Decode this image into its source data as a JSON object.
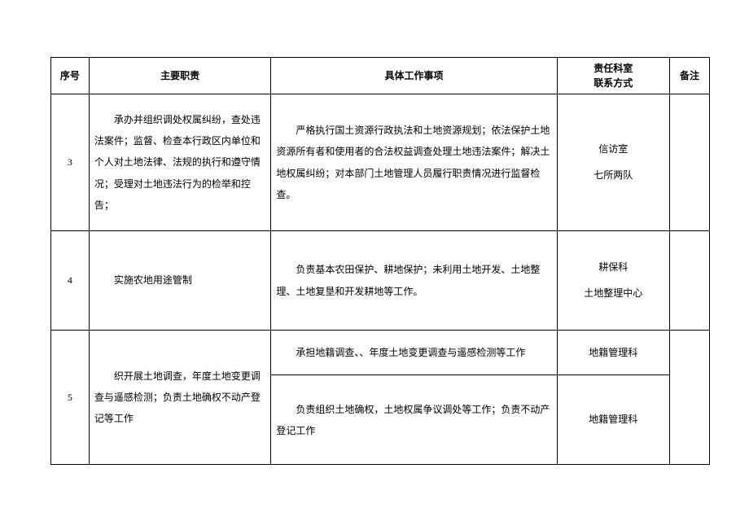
{
  "header": {
    "num": "序号",
    "duty": "主要职责",
    "work": "具体工作事项",
    "dept": "责任科室\n联系方式",
    "note": "备注"
  },
  "rows": [
    {
      "num": "3",
      "duty": "承办并组织调处权属纠纷，查处违法案件；监督、检查本行政区内单位和个人对土地法律、法规的执行和遵守情况；受理对土地违法行为的检举和控告；",
      "works": [
        {
          "text": "严格执行国土资源行政执法和土地资源规划；依法保护土地资源所有者和使用者的合法权益调查处理土地违法案件；解决土地权属纠纷；对本部门土地管理人员履行职责情况进行监督检查。",
          "dept": [
            "信访室",
            "",
            "七所两队"
          ]
        }
      ]
    },
    {
      "num": "4",
      "duty": "实施农地用途管制",
      "works": [
        {
          "text": "负责基本农田保护、耕地保护；未利用土地开发、土地整理、土地复垦和开发耕地等工作。",
          "dept": [
            "耕保科",
            "",
            "土地整理中心"
          ]
        }
      ]
    },
    {
      "num": "5",
      "duty": "织开展土地调查，年度土地变更调查与遥感检测；负责土地确权不动产登记等工作",
      "works": [
        {
          "text": "承担地籍调查、、年度土地变更调查与遥感检测等工作",
          "dept": [
            "地籍管理科"
          ]
        },
        {
          "text": "负责组织土地确权，土地权属争议调处等工作；负责不动产登记工作",
          "dept": [
            "地籍管理科"
          ]
        }
      ]
    }
  ],
  "colors": {
    "border": "#000000",
    "background": "#ffffff",
    "text": "#000000"
  },
  "fontsize_pt": 9
}
